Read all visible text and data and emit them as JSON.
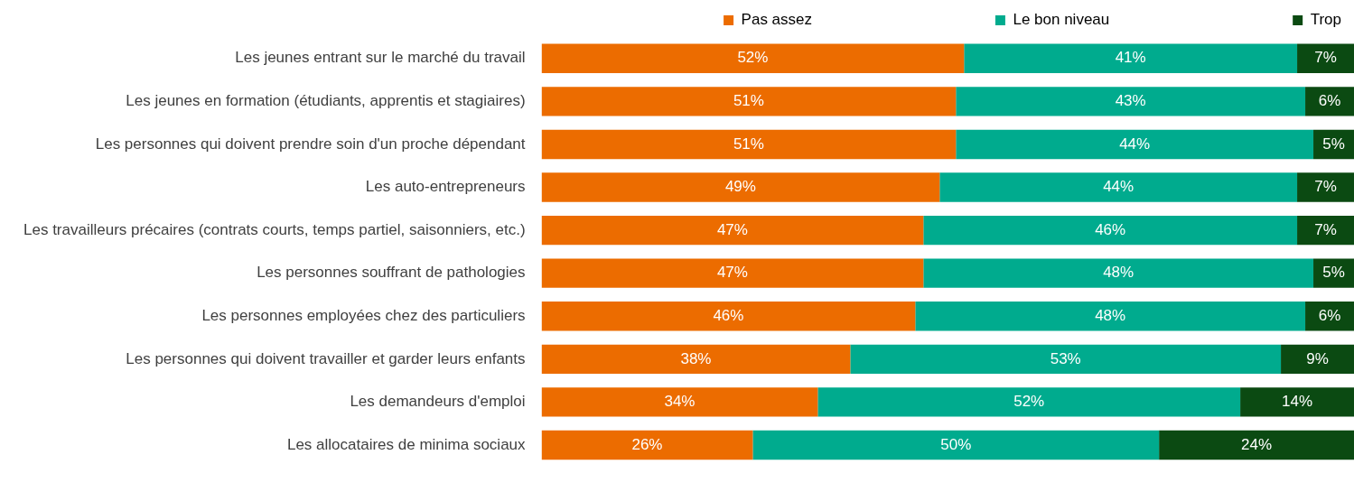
{
  "chart_data": {
    "type": "bar",
    "orientation": "horizontal",
    "stacked": true,
    "legend": "top",
    "grid": false,
    "tick_labels": "y",
    "xlim": [
      0,
      100
    ],
    "categories": [
      "Les jeunes entrant sur le marché du travail",
      "Les jeunes en formation (étudiants, apprentis et stagiaires)",
      "Les personnes qui doivent prendre soin d'un proche dépendant",
      "Les auto-entrepreneurs",
      "Les travailleurs précaires (contrats courts, temps partiel, saisonniers, etc.)",
      "Les personnes souffrant de pathologies",
      "Les personnes employées chez des particuliers",
      "Les personnes qui doivent travailler et garder leurs enfants",
      "Les demandeurs d'emploi",
      "Les allocataires de minima sociaux"
    ],
    "series": [
      {
        "name": "Pas assez",
        "color": "#ec6c00",
        "values": [
          52,
          51,
          51,
          49,
          47,
          47,
          46,
          38,
          34,
          26
        ],
        "value_labels": [
          "52%",
          "51%",
          "51%",
          "49%",
          "47%",
          "47%",
          "46%",
          "38%",
          "34%",
          "26%"
        ]
      },
      {
        "name": "Le bon niveau",
        "color": "#00ab8e",
        "values": [
          41,
          43,
          44,
          44,
          46,
          48,
          48,
          53,
          52,
          50
        ],
        "value_labels": [
          "41%",
          "43%",
          "44%",
          "44%",
          "46%",
          "48%",
          "48%",
          "53%",
          "52%",
          "50%"
        ]
      },
      {
        "name": "Trop",
        "color": "#0b4a12",
        "values": [
          7,
          6,
          5,
          7,
          7,
          5,
          6,
          9,
          14,
          24
        ],
        "value_labels": [
          "7%",
          "6%",
          "5%",
          "7%",
          "7%",
          "5%",
          "6%",
          "9%",
          "14%",
          "24%"
        ]
      }
    ]
  }
}
